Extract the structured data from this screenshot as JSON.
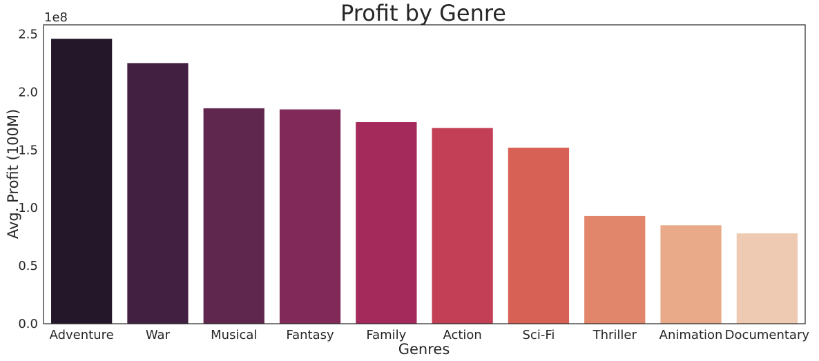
{
  "chart_data": {
    "type": "bar",
    "title": "Profit by Genre",
    "xlabel": "Genres",
    "ylabel": "Avg. Profit (100M)",
    "offset_text": "1e8",
    "categories": [
      "Adventure",
      "War",
      "Musical",
      "Fantasy",
      "Family",
      "Action",
      "Sci-Fi",
      "Thriller",
      "Animation",
      "Documentary"
    ],
    "values": [
      246000000,
      225000000,
      186000000,
      185000000,
      174000000,
      169000000,
      152000000,
      93000000,
      85000000,
      78000000
    ],
    "colors": [
      "#231729",
      "#422041",
      "#5f274e",
      "#812959",
      "#a32a5a",
      "#c33f56",
      "#d76155",
      "#e1866a",
      "#e8aa89",
      "#eecab2"
    ],
    "ylim": [
      0,
      258000000
    ],
    "yticks": [
      0,
      50000000,
      100000000,
      150000000,
      200000000,
      250000000
    ],
    "ytick_labels": [
      "0.0",
      "0.5",
      "1.0",
      "1.5",
      "2.0",
      "2.5"
    ],
    "grid": false,
    "legend": false
  }
}
